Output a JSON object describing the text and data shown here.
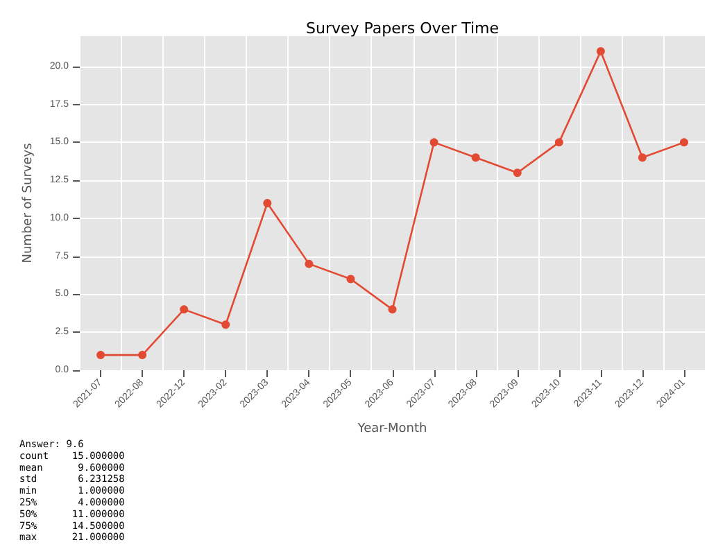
{
  "chart_data": {
    "type": "line",
    "title": "Survey Papers Over Time",
    "xlabel": "Year-Month",
    "ylabel": "Number of Surveys",
    "categories": [
      "2021-07",
      "2022-08",
      "2022-12",
      "2023-02",
      "2023-03",
      "2023-04",
      "2023-05",
      "2023-06",
      "2023-07",
      "2023-08",
      "2023-09",
      "2023-10",
      "2023-11",
      "2023-12",
      "2024-01"
    ],
    "series": [
      {
        "color": "#e24a33",
        "values": [
          1,
          1,
          4,
          3,
          11,
          7,
          6,
          4,
          15,
          14,
          13,
          15,
          21,
          14,
          15
        ]
      }
    ],
    "ylim": [
      0,
      22
    ],
    "yticks": [
      {
        "value": 0,
        "label": "0.0"
      },
      {
        "value": 2.5,
        "label": "2.5"
      },
      {
        "value": 5,
        "label": "5.0"
      },
      {
        "value": 7.5,
        "label": "7.5"
      },
      {
        "value": 10,
        "label": "10.0"
      },
      {
        "value": 12.5,
        "label": "12.5"
      },
      {
        "value": 15,
        "label": "15.0"
      },
      {
        "value": 17.5,
        "label": "17.5"
      },
      {
        "value": 20,
        "label": "20.0"
      }
    ],
    "grid": true,
    "marker": "circle",
    "line_style": "solid",
    "annotations": [
      "Answer: 9.6",
      "count    15.000000",
      "mean      9.600000",
      "std       6.231258",
      "min       1.000000",
      "25%       4.000000",
      "50%      11.000000",
      "75%      14.500000",
      "max      21.000000"
    ]
  }
}
